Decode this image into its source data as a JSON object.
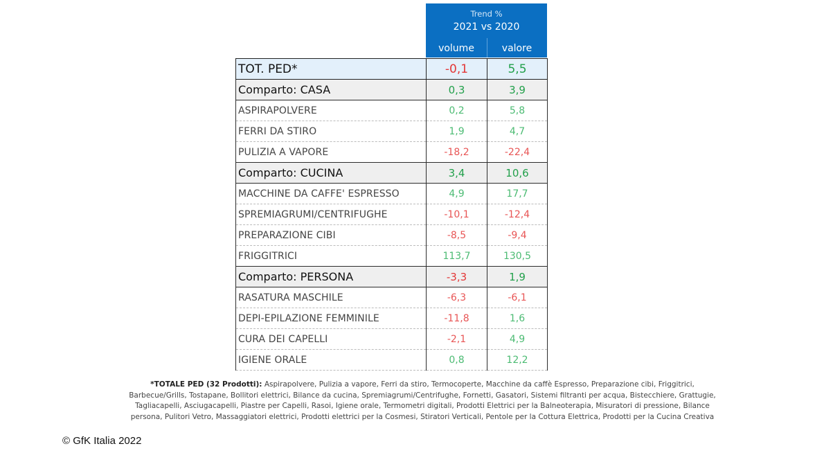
{
  "header": {
    "trend_label": "Trend %",
    "years_label": "2021 vs 2020",
    "col_volume": "volume",
    "col_valore": "valore"
  },
  "rows": [
    {
      "type": "total",
      "label": "TOT. PED*",
      "volume": "-0,1",
      "valore": "5,5",
      "volume_sign": "neg",
      "valore_sign": "pos"
    },
    {
      "type": "section",
      "label": "Comparto: CASA",
      "volume": "0,3",
      "valore": "3,9",
      "volume_sign": "pos",
      "valore_sign": "pos"
    },
    {
      "type": "item",
      "label": "ASPIRAPOLVERE",
      "volume": "0,2",
      "valore": "5,8",
      "volume_sign": "pos",
      "valore_sign": "pos"
    },
    {
      "type": "item",
      "label": "FERRI DA STIRO",
      "volume": "1,9",
      "valore": "4,7",
      "volume_sign": "pos",
      "valore_sign": "pos"
    },
    {
      "type": "item",
      "label": "PULIZIA A VAPORE",
      "volume": "-18,2",
      "valore": "-22,4",
      "volume_sign": "neg",
      "valore_sign": "neg"
    },
    {
      "type": "section",
      "label": "Comparto: CUCINA",
      "volume": "3,4",
      "valore": "10,6",
      "volume_sign": "pos",
      "valore_sign": "pos"
    },
    {
      "type": "item",
      "label": "MACCHINE DA CAFFE' ESPRESSO",
      "volume": "4,9",
      "valore": "17,7",
      "volume_sign": "pos",
      "valore_sign": "pos"
    },
    {
      "type": "item",
      "label": "SPREMIAGRUMI/CENTRIFUGHE",
      "volume": "-10,1",
      "valore": "-12,4",
      "volume_sign": "neg",
      "valore_sign": "neg"
    },
    {
      "type": "item",
      "label": "PREPARAZIONE CIBI",
      "volume": "-8,5",
      "valore": "-9,4",
      "volume_sign": "neg",
      "valore_sign": "neg"
    },
    {
      "type": "item",
      "label": "FRIGGITRICI",
      "volume": "113,7",
      "valore": "130,5",
      "volume_sign": "pos",
      "valore_sign": "pos"
    },
    {
      "type": "section",
      "label": "Comparto: PERSONA",
      "volume": "-3,3",
      "valore": "1,9",
      "volume_sign": "neg",
      "valore_sign": "pos"
    },
    {
      "type": "item",
      "label": "RASATURA MASCHILE",
      "volume": "-6,3",
      "valore": "-6,1",
      "volume_sign": "neg",
      "valore_sign": "neg"
    },
    {
      "type": "item",
      "label": "DEPI-EPILAZIONE FEMMINILE",
      "volume": "-11,8",
      "valore": "1,6",
      "volume_sign": "neg",
      "valore_sign": "pos"
    },
    {
      "type": "item",
      "label": "CURA DEI CAPELLI",
      "volume": "-2,1",
      "valore": "4,9",
      "volume_sign": "neg",
      "valore_sign": "pos"
    },
    {
      "type": "item",
      "label": "IGIENE ORALE",
      "volume": "0,8",
      "valore": "12,2",
      "volume_sign": "pos",
      "valore_sign": "pos"
    }
  ],
  "footnote": {
    "heading": "*TOTALE PED (32 Prodotti):",
    "lines": [
      " Aspirapolvere, Pulizia a vapore, Ferri da stiro, Termocoperte, Macchine da caffè Espresso, Preparazione cibi, Friggitrici,",
      "Barbecue/Grills, Tostapane, Bollitori elettrici, Bilance da cucina, Spremiagrumi/Centrifughe, Fornetti, Gasatori, Sistemi filtranti per acqua, Bistecchiere, Grattugie,",
      "Tagliacapelli, Asciugacapelli, Piastre per Capelli, Rasoi, Igiene orale, Termometri digitali, Prodotti Elettrici per la Balneoterapia, Misuratori di pressione, Bilance",
      "persona, Pulitori Vetro, Massaggiatori elettrici, Prodotti elettrici per la Cosmesi, Stiratori Verticali, Pentole per la Cottura Elettrica, Prodotti per la Cucina Creativa"
    ]
  },
  "copyright": "© GfK Italia 2022",
  "colors": {
    "header_blue": "#0b6fc2",
    "positive": "#22a04b",
    "negative": "#e33636",
    "total_row_bg": "#e3f0fb",
    "section_row_bg": "#efefef"
  }
}
